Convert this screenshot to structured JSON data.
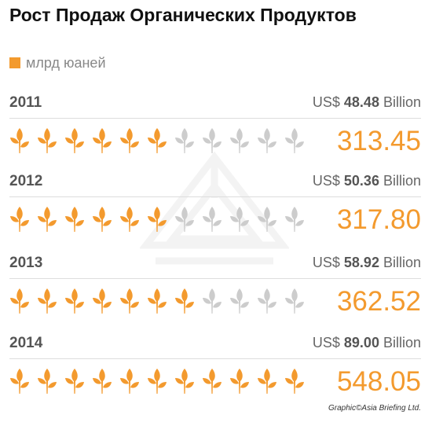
{
  "title": "Рост Продаж Органических Продуктов",
  "legend": {
    "label": "млрд юаней",
    "color": "#f39a2e"
  },
  "credit": "Graphic©Asia Briefing Ltd.",
  "colors": {
    "accent": "#f39a2e",
    "inactive": "#cccccc"
  },
  "chart_data": {
    "type": "pictograph",
    "title": "Рост Продаж Органических Продуктов",
    "unit": "млрд юаней",
    "icons_per_row": 11,
    "categories": [
      "2011",
      "2012",
      "2013",
      "2014"
    ],
    "values": [
      313.45,
      317.8,
      362.52,
      548.05
    ],
    "value_labels": [
      "313.45",
      "317.80",
      "362.52",
      "548.05"
    ],
    "filled_icons": [
      6,
      6,
      7,
      11
    ],
    "usd": [
      {
        "prefix": "US$",
        "amount": "48.48",
        "suffix": "Billion"
      },
      {
        "prefix": "US$",
        "amount": "50.36",
        "suffix": "Billion"
      },
      {
        "prefix": "US$",
        "amount": "58.92",
        "suffix": "Billion"
      },
      {
        "prefix": "US$",
        "amount": "89.00",
        "suffix": "Billion"
      }
    ]
  }
}
